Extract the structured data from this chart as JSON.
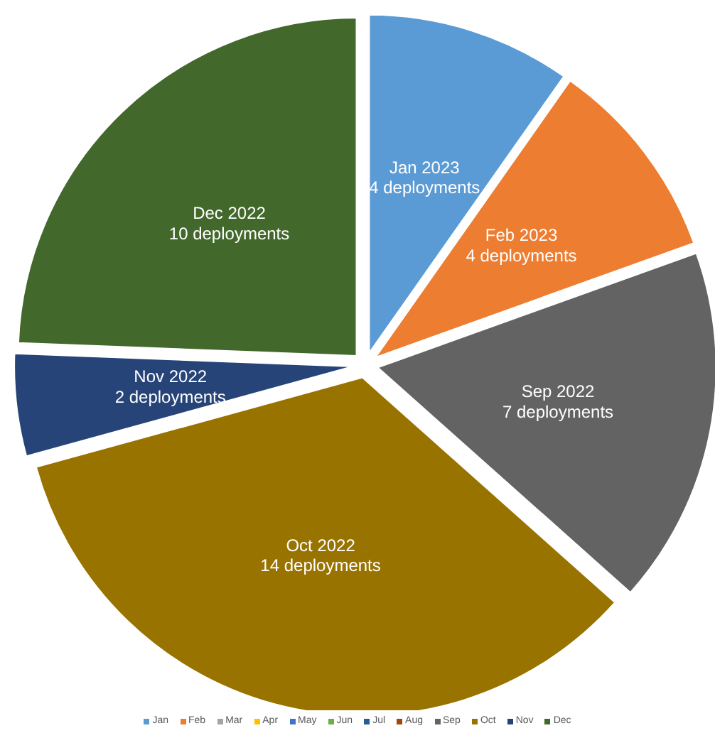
{
  "chart_data": {
    "type": "pie",
    "categories": [
      "Jan 2023",
      "Feb 2023",
      "Sep 2022",
      "Oct 2022",
      "Nov 2022",
      "Dec 2022"
    ],
    "values": [
      4,
      4,
      7,
      14,
      2,
      10
    ],
    "value_labels": [
      "4 deployments",
      "4 deployments",
      "7 deployments",
      "14 deployments",
      "2 deployments",
      "10 deployments"
    ],
    "colors": [
      "#5b9bd5",
      "#ed7d31",
      "#636363",
      "#997300",
      "#264478",
      "#43682b"
    ],
    "annotations": [
      "Jan",
      "Feb",
      "Mar",
      "Apr",
      "May",
      "Jun",
      "Jul",
      "Aug",
      "Sep",
      "Oct",
      "Nov",
      "Dec"
    ]
  }
}
